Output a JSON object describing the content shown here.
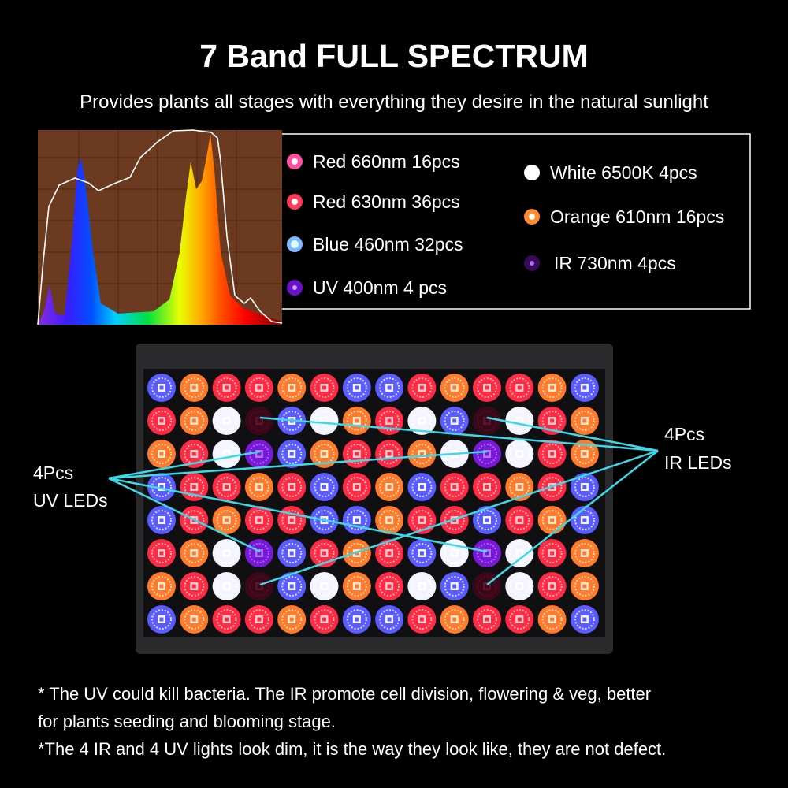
{
  "header": {
    "title": "7 Band FULL SPECTRUM",
    "subtitle": "Provides plants all stages with everything they desire in the natural sunlight"
  },
  "legend": {
    "items": [
      "Red 660nm 16pcs",
      "Red 630nm 36pcs",
      "Blue 460nm 32pcs",
      "UV 400nm 4 pcs",
      "White 6500K 4pcs",
      "Orange 610nm 16pcs",
      "IR 730nm 4pcs"
    ]
  },
  "callouts": {
    "uv": {
      "count": "4Pcs",
      "label": "UV LEDs"
    },
    "ir": {
      "count": "4Pcs",
      "label": "IR LEDs"
    }
  },
  "notes": [
    "* The UV could kill bacteria. The IR promote cell division, flowering & veg, better",
    "for plants seeding and blooming stage.",
    "*The 4 IR and 4 UV lights look dim, it is the way they look like, they are not defect."
  ]
}
